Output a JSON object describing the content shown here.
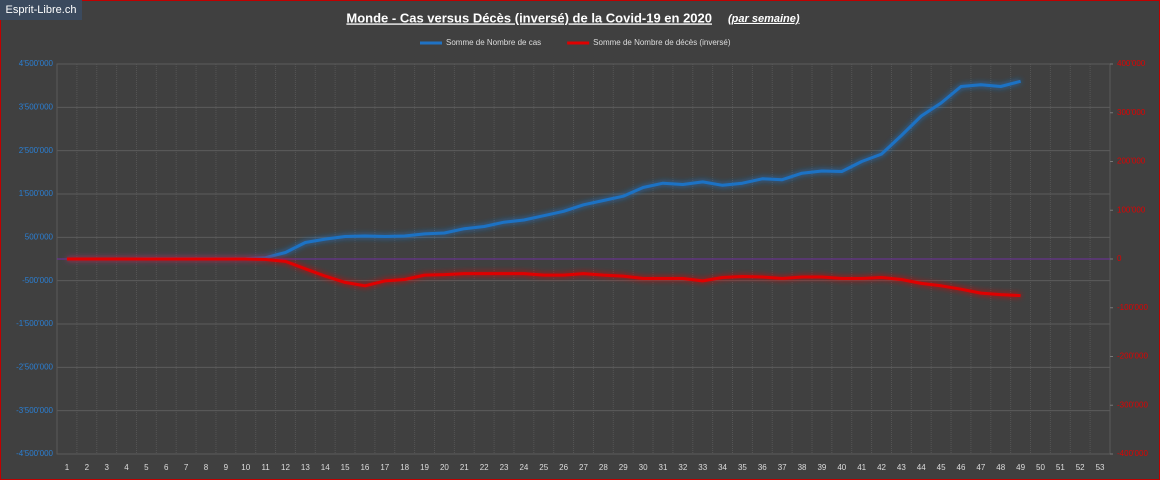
{
  "chart_data": {
    "type": "line",
    "watermark": "Esprit-Libre.ch",
    "title": "Monde - Cas versus Décès (inversé) de la Covid-19 en 2020",
    "subtitle": "(par semaine)",
    "categories": [
      "1",
      "2",
      "3",
      "4",
      "5",
      "6",
      "7",
      "8",
      "9",
      "10",
      "11",
      "12",
      "13",
      "14",
      "15",
      "16",
      "17",
      "18",
      "19",
      "20",
      "21",
      "22",
      "23",
      "24",
      "25",
      "26",
      "27",
      "28",
      "29",
      "30",
      "31",
      "32",
      "33",
      "34",
      "35",
      "36",
      "37",
      "38",
      "39",
      "40",
      "41",
      "42",
      "43",
      "44",
      "45",
      "46",
      "47",
      "48",
      "49",
      "50",
      "51",
      "52",
      "53"
    ],
    "series": [
      {
        "name": "Somme de Nombre de cas",
        "color": "#1f72c4",
        "axis": "y",
        "values": [
          0,
          0,
          0,
          0,
          5000,
          5000,
          5000,
          5000,
          5000,
          10000,
          30000,
          150000,
          380000,
          460000,
          520000,
          530000,
          520000,
          530000,
          580000,
          600000,
          700000,
          750000,
          850000,
          900000,
          1000000,
          1100000,
          1250000,
          1350000,
          1450000,
          1650000,
          1750000,
          1720000,
          1780000,
          1700000,
          1750000,
          1850000,
          1830000,
          1980000,
          2030000,
          2020000,
          2250000,
          2420000,
          2850000,
          3300000,
          3600000,
          3980000,
          4020000,
          3980000,
          4100000,
          null,
          null,
          null,
          null
        ]
      },
      {
        "name": "Somme de Nombre de décès (inversé)",
        "color": "#e00000",
        "axis": "y2",
        "values": [
          0,
          0,
          0,
          0,
          0,
          0,
          0,
          0,
          0,
          0,
          -1000,
          -5000,
          -20000,
          -35000,
          -48000,
          -55000,
          -45000,
          -42000,
          -33000,
          -32000,
          -30000,
          -30000,
          -30000,
          -30000,
          -33000,
          -33000,
          -30000,
          -33000,
          -35000,
          -40000,
          -40000,
          -40000,
          -45000,
          -38000,
          -36000,
          -37000,
          -40000,
          -37000,
          -37000,
          -40000,
          -40000,
          -38000,
          -42000,
          -50000,
          -55000,
          -62000,
          -70000,
          -73000,
          -75000,
          null,
          null,
          null,
          null
        ]
      }
    ],
    "ylim": [
      -4500000,
      4500000
    ],
    "yticks": [
      {
        "value": 4500000,
        "label": "4'500'000"
      },
      {
        "value": 3500000,
        "label": "3'500'000"
      },
      {
        "value": 2500000,
        "label": "2'500'000"
      },
      {
        "value": 1500000,
        "label": "1'500'000"
      },
      {
        "value": 500000,
        "label": "500'000"
      },
      {
        "value": -500000,
        "label": "-500'000"
      },
      {
        "value": -1500000,
        "label": "-1'500'000"
      },
      {
        "value": -2500000,
        "label": "-2'500'000"
      },
      {
        "value": -3500000,
        "label": "-3'500'000"
      },
      {
        "value": -4500000,
        "label": "-4'500'000"
      }
    ],
    "y2lim": [
      -400000,
      400000
    ],
    "y2ticks": [
      {
        "value": 400000,
        "label": "400'000"
      },
      {
        "value": 300000,
        "label": "300'000"
      },
      {
        "value": 200000,
        "label": "200'000"
      },
      {
        "value": 100000,
        "label": "100'000"
      },
      0,
      {
        "value": -100000,
        "label": "-100'000"
      },
      {
        "value": -200000,
        "label": "-200'000"
      },
      {
        "value": -300000,
        "label": "-300'000"
      },
      {
        "value": -400000,
        "label": "-400'000"
      }
    ],
    "grid": true
  }
}
